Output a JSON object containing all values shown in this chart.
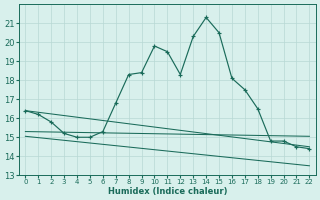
{
  "xlabel": "Humidex (Indice chaleur)",
  "x_values": [
    0,
    1,
    2,
    3,
    4,
    5,
    6,
    7,
    8,
    9,
    10,
    11,
    12,
    13,
    14,
    15,
    16,
    17,
    18,
    19,
    20,
    21,
    22
  ],
  "ylim": [
    13,
    22
  ],
  "xlim": [
    -0.5,
    22.5
  ],
  "yticks": [
    13,
    14,
    15,
    16,
    17,
    18,
    19,
    20,
    21
  ],
  "xticks": [
    0,
    1,
    2,
    3,
    4,
    5,
    6,
    7,
    8,
    9,
    10,
    11,
    12,
    13,
    14,
    15,
    16,
    17,
    18,
    19,
    20,
    21,
    22
  ],
  "line_color": "#1a6b5a",
  "bg_color": "#d8f0ec",
  "grid_color": "#b8d8d4",
  "marker": "+",
  "main_y": [
    16.4,
    16.2,
    15.8,
    15.2,
    15.0,
    15.0,
    15.3,
    16.8,
    18.3,
    18.4,
    19.8,
    19.5,
    18.3,
    20.3,
    21.3,
    20.5,
    18.1,
    17.5,
    16.5,
    14.8,
    14.8,
    14.5,
    14.4
  ],
  "trend1": [
    16.4,
    14.5
  ],
  "trend2": [
    15.3,
    15.05
  ],
  "trend3": [
    15.05,
    13.5
  ]
}
